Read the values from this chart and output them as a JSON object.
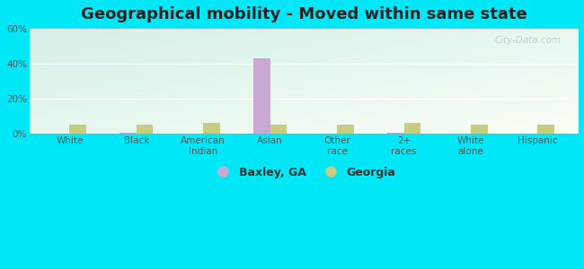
{
  "title": "Geographical mobility - Moved within same state",
  "categories": [
    "White",
    "Black",
    "American\nIndian",
    "Asian",
    "Other\nrace",
    "2+\nraces",
    "White\nalone",
    "Hispanic"
  ],
  "baxley_values": [
    0.3,
    0.8,
    0.0,
    43.0,
    0.0,
    0.8,
    0.3,
    0.0
  ],
  "georgia_values": [
    5.0,
    5.0,
    6.0,
    5.0,
    5.0,
    6.0,
    5.0,
    5.0
  ],
  "baxley_color": "#c9a8d4",
  "georgia_color": "#c8cc80",
  "ylim": [
    0,
    60
  ],
  "yticks": [
    0,
    20,
    40,
    60
  ],
  "ytick_labels": [
    "0%",
    "20%",
    "40%",
    "60%"
  ],
  "bg_topleft": "#d4f0e8",
  "bg_bottomright": "#f0faf0",
  "outer_background": "#00e8f8",
  "bar_width": 0.25,
  "legend_baxley": "Baxley, GA",
  "legend_georgia": "Georgia",
  "title_fontsize": 13,
  "tick_fontsize": 7.5,
  "legend_fontsize": 9
}
